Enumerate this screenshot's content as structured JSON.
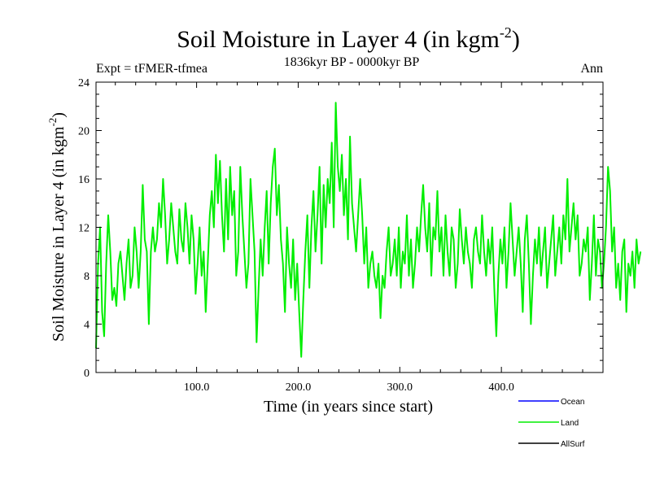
{
  "title": {
    "main": "Soil Moisture in Layer 4 (in kgm",
    "sup": "-2",
    "close": ")"
  },
  "subtitle": "1836kyr BP - 0000kyr BP",
  "left_label": "Expt = tFMER-tfmea",
  "right_label": "Ann",
  "colors": {
    "ocean": "#0000ff",
    "land": "#00ee00",
    "allsurf": "#000000",
    "axis": "#000000"
  },
  "chart_data": {
    "type": "line",
    "title": "Soil Moisture in Layer 4 (in kgm-2)",
    "subtitle": "1836kyr BP - 0000kyr BP",
    "xlabel": "Time (in years since start)",
    "ylabel": {
      "main": "Soil Moisture in Layer 4 (in kgm",
      "sup": "-2",
      "close": ")"
    },
    "xlim": [
      1,
      500
    ],
    "ylim": [
      0,
      24
    ],
    "xticks": [
      100,
      200,
      300,
      400
    ],
    "xtick_labels": [
      "100.0",
      "200.0",
      "300.0",
      "400.0"
    ],
    "yticks": [
      0,
      4,
      8,
      12,
      16,
      20,
      24
    ],
    "ytick_labels": [
      "0",
      "4",
      "8",
      "12",
      "16",
      "20",
      "24"
    ],
    "legend": [
      {
        "name": "Ocean",
        "color": "#0000ff"
      },
      {
        "name": "Land",
        "color": "#00ee00"
      },
      {
        "name": "AllSurf",
        "color": "#000000"
      }
    ],
    "legend_position": "bottom-right",
    "series": [
      {
        "name": "Land",
        "color": "#00ee00",
        "x_start": 1,
        "x_step": 2,
        "values": [
          2.0,
          9.0,
          12.0,
          5.0,
          3.0,
          9.0,
          13.0,
          10.0,
          6.0,
          7.0,
          5.5,
          9.0,
          10.0,
          8.0,
          6.0,
          9.0,
          11.0,
          7.0,
          8.0,
          12.0,
          10.0,
          7.0,
          10.0,
          15.5,
          11.0,
          10.0,
          4.0,
          10.0,
          12.0,
          10.0,
          11.0,
          14.0,
          12.0,
          16.0,
          13.0,
          9.0,
          11.0,
          14.0,
          12.0,
          10.0,
          9.0,
          13.5,
          11.0,
          10.0,
          14.0,
          12.0,
          9.0,
          13.0,
          11.0,
          6.5,
          9.0,
          12.0,
          8.0,
          10.0,
          5.0,
          9.0,
          13.0,
          15.0,
          12.0,
          18.0,
          14.0,
          17.5,
          13.0,
          10.0,
          16.0,
          11.0,
          17.0,
          13.0,
          15.0,
          8.0,
          10.0,
          17.0,
          13.0,
          10.0,
          7.0,
          9.0,
          16.0,
          13.0,
          10.0,
          2.5,
          7.0,
          11.0,
          8.0,
          12.0,
          15.0,
          9.0,
          14.0,
          17.0,
          18.5,
          13.0,
          15.5,
          11.0,
          9.0,
          5.0,
          12.0,
          9.0,
          7.0,
          11.0,
          6.0,
          9.0,
          5.0,
          1.3,
          6.0,
          10.0,
          13.0,
          7.0,
          12.0,
          15.0,
          10.0,
          13.0,
          17.0,
          9.0,
          15.5,
          12.0,
          16.0,
          14.0,
          19.0,
          12.0,
          22.3,
          17.0,
          15.0,
          18.0,
          13.0,
          16.0,
          11.0,
          19.5,
          14.0,
          12.0,
          10.0,
          13.0,
          16.0,
          13.0,
          9.0,
          12.0,
          7.0,
          9.0,
          10.0,
          8.0,
          7.0,
          9.0,
          4.5,
          8.0,
          7.0,
          10.0,
          12.0,
          8.0,
          9.0,
          11.0,
          8.0,
          12.0,
          7.0,
          10.0,
          9.0,
          13.0,
          8.0,
          11.0,
          7.0,
          9.0,
          12.0,
          10.0,
          13.0,
          15.5,
          12.0,
          10.0,
          14.0,
          8.0,
          12.0,
          11.0,
          15.0,
          10.0,
          12.0,
          8.0,
          13.0,
          10.0,
          8.0,
          12.0,
          11.0,
          7.0,
          9.0,
          13.5,
          11.0,
          9.0,
          12.0,
          10.0,
          9.0,
          7.0,
          11.0,
          12.0,
          10.0,
          9.0,
          13.0,
          10.0,
          8.0,
          11.0,
          9.0,
          12.0,
          7.0,
          3.0,
          8.0,
          11.0,
          9.0,
          12.0,
          7.0,
          10.0,
          14.0,
          11.0,
          8.0,
          10.0,
          12.0,
          9.0,
          5.0,
          11.0,
          13.0,
          9.0,
          4.0,
          8.0,
          11.0,
          9.0,
          12.0,
          8.0,
          10.0,
          12.0,
          7.0,
          9.0,
          11.0,
          13.0,
          8.0,
          10.0,
          12.0,
          9.0,
          13.0,
          11.0,
          16.0,
          10.0,
          12.0,
          14.0,
          11.0,
          13.0,
          8.0,
          9.0,
          11.0,
          10.0,
          12.0,
          6.0,
          9.0,
          13.0,
          8.0,
          11.0,
          10.0,
          7.0,
          9.0,
          12.0,
          17.0,
          15.0,
          10.0,
          12.0,
          7.0,
          9.0,
          6.0,
          10.0,
          11.0,
          5.0,
          9.0,
          8.0,
          10.0,
          7.0,
          11.0,
          9.0,
          10.0
        ]
      }
    ]
  }
}
